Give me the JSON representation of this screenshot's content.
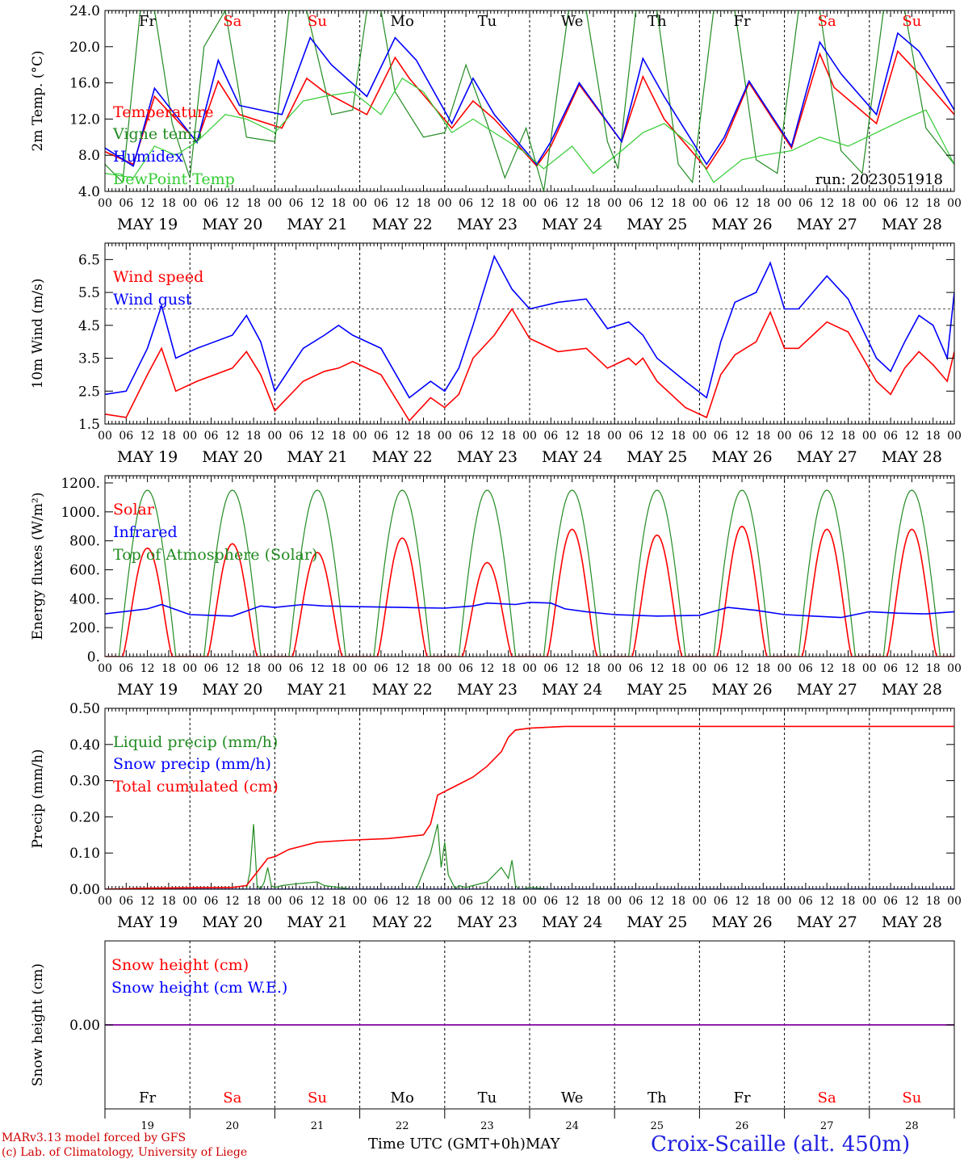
{
  "colors": {
    "red": "#ff0000",
    "green": "#228b22",
    "blue": "#0000ff",
    "lightgreen": "#33cc33",
    "purple": "#8000a0"
  },
  "days": [
    {
      "date": "MAY 19",
      "weekday": "Fr",
      "weekend": false,
      "num": "19"
    },
    {
      "date": "MAY 20",
      "weekday": "Sa",
      "weekend": true,
      "num": "20"
    },
    {
      "date": "MAY 21",
      "weekday": "Su",
      "weekend": true,
      "num": "21"
    },
    {
      "date": "MAY 22",
      "weekday": "Mo",
      "weekend": false,
      "num": "22"
    },
    {
      "date": "MAY 23",
      "weekday": "Tu",
      "weekend": false,
      "num": "23"
    },
    {
      "date": "MAY 24",
      "weekday": "We",
      "weekend": false,
      "num": "24"
    },
    {
      "date": "MAY 25",
      "weekday": "Th",
      "weekend": false,
      "num": "25"
    },
    {
      "date": "MAY 26",
      "weekday": "Fr",
      "weekend": false,
      "num": "26"
    },
    {
      "date": "MAY 27",
      "weekday": "Sa",
      "weekend": true,
      "num": "27"
    },
    {
      "date": "MAY 28",
      "weekday": "Su",
      "weekend": true,
      "num": "28"
    }
  ],
  "hour_ticks": [
    "00",
    "06",
    "12",
    "18"
  ],
  "final_hour_tick": "00",
  "footer": {
    "credit_line1": "MARv3.13 model forced by GFS",
    "credit_line2": "(c) Lab. of Climatology, University of Liege",
    "time_label": "Time UTC (GMT+0h)",
    "month": "MAY",
    "station": "Croix-Scaille (alt. 450m)"
  },
  "chart_data": [
    {
      "id": "temp",
      "type": "line",
      "ylabel": "2m Temp. (°C)",
      "ylim": [
        4,
        24
      ],
      "yticks": [
        "4.0",
        "8.0",
        "12.0",
        "16.0",
        "20.0",
        "24.0"
      ],
      "annotation": "run: 2023051918",
      "x_unit": "hours since May 19 00 UTC",
      "series": [
        {
          "name": "Temperature",
          "color": "red",
          "x": [
            0,
            8,
            14,
            26,
            32,
            38,
            50,
            57,
            62,
            74,
            82,
            86,
            98,
            104,
            110,
            122,
            126,
            134,
            146,
            152,
            158,
            170,
            175,
            182,
            194,
            202,
            206,
            218,
            224,
            230,
            240
          ],
          "y": [
            8.4,
            7.0,
            14.5,
            9.5,
            16.2,
            12.5,
            11.0,
            16.5,
            15.0,
            12.5,
            18.8,
            16.5,
            11.0,
            14.0,
            12.0,
            6.8,
            9.0,
            15.8,
            9.5,
            16.7,
            12.0,
            6.5,
            9.5,
            16.0,
            8.8,
            19.2,
            15.5,
            11.5,
            19.5,
            17.0,
            12.5
          ]
        },
        {
          "name": "Vigne temp",
          "color": "green",
          "x": [
            0,
            5,
            10,
            14,
            19,
            24,
            28,
            34,
            40,
            48,
            52,
            57,
            64,
            70,
            74,
            78,
            82,
            90,
            96,
            102,
            108,
            113,
            119,
            124,
            131,
            136,
            142,
            145,
            150,
            156,
            162,
            166,
            172,
            178,
            184,
            190,
            196,
            202,
            208,
            214,
            220,
            226,
            232,
            240
          ],
          "y": [
            7.0,
            5.0,
            24,
            24,
            11.5,
            5.5,
            20,
            24,
            10.0,
            9.5,
            24,
            24,
            12.5,
            13.0,
            24,
            24,
            15.0,
            10.0,
            10.5,
            18.0,
            11.5,
            5.5,
            11.0,
            4.0,
            24,
            24,
            9.5,
            6.5,
            24,
            24,
            7.0,
            5.0,
            24,
            24,
            7.5,
            6.0,
            24,
            24,
            8.5,
            6.0,
            24,
            24,
            11.0,
            7.0
          ]
        },
        {
          "name": "Humidex",
          "color": "blue",
          "x": [
            0,
            8,
            14,
            26,
            32,
            38,
            50,
            58,
            64,
            74,
            82,
            88,
            98,
            104,
            110,
            122,
            126,
            134,
            146,
            152,
            158,
            170,
            175,
            182,
            194,
            202,
            208,
            218,
            224,
            230,
            240
          ],
          "y": [
            8.8,
            6.8,
            15.4,
            9.4,
            18.5,
            13.5,
            12.5,
            21.0,
            18.0,
            14.5,
            21.0,
            18.5,
            11.5,
            16.5,
            12.5,
            7.0,
            9.5,
            16.0,
            9.5,
            18.7,
            14.5,
            7.0,
            10.0,
            16.2,
            9.0,
            20.5,
            17.0,
            12.5,
            21.5,
            19.5,
            13.0
          ]
        },
        {
          "name": "DewPoint Temp",
          "color": "lightgreen",
          "x": [
            0,
            8,
            14,
            20,
            26,
            34,
            40,
            48,
            56,
            62,
            70,
            78,
            84,
            90,
            98,
            104,
            110,
            118,
            124,
            132,
            138,
            146,
            152,
            158,
            166,
            172,
            180,
            186,
            194,
            202,
            210,
            218,
            226,
            232,
            240
          ],
          "y": [
            6.0,
            5.5,
            9.0,
            8.0,
            9.5,
            12.5,
            12.0,
            10.5,
            14.0,
            14.5,
            15.0,
            12.5,
            16.5,
            15.0,
            10.5,
            12.0,
            10.5,
            8.5,
            6.5,
            9.0,
            6.0,
            8.5,
            10.5,
            11.5,
            9.0,
            5.0,
            7.5,
            8.0,
            8.5,
            10.0,
            9.0,
            10.5,
            12.0,
            13.0,
            7.0
          ]
        }
      ]
    },
    {
      "id": "wind",
      "type": "line",
      "ylabel": "10m Wind (m/s)",
      "ylim": [
        1.5,
        7.0
      ],
      "yticks": [
        "1.5",
        "2.5",
        "3.5",
        "4.5",
        "5.5",
        "6.5"
      ],
      "hline": 5.0,
      "x_unit": "hours since May 19 00 UTC",
      "series": [
        {
          "name": "Wind speed",
          "color": "red",
          "x": [
            0,
            6,
            12,
            16,
            20,
            26,
            36,
            40,
            44,
            48,
            56,
            62,
            66,
            70,
            78,
            86,
            92,
            96,
            100,
            104,
            110,
            115,
            120,
            128,
            136,
            142,
            148,
            150,
            152,
            156,
            164,
            170,
            174,
            178,
            184,
            188,
            192,
            196,
            204,
            210,
            218,
            222,
            226,
            230,
            234,
            238,
            240
          ],
          "y": [
            1.8,
            1.7,
            3.0,
            3.8,
            2.5,
            2.8,
            3.2,
            3.7,
            3.0,
            1.9,
            2.8,
            3.1,
            3.2,
            3.4,
            3.0,
            1.6,
            2.3,
            2.0,
            2.4,
            3.5,
            4.2,
            5.0,
            4.1,
            3.7,
            3.8,
            3.2,
            3.5,
            3.3,
            3.5,
            2.8,
            2.0,
            1.7,
            3.0,
            3.6,
            4.0,
            4.9,
            3.8,
            3.8,
            4.6,
            4.3,
            2.8,
            2.4,
            3.2,
            3.7,
            3.3,
            2.8,
            3.7
          ]
        },
        {
          "name": "Wind gust",
          "color": "blue",
          "x": [
            0,
            6,
            12,
            16,
            20,
            26,
            36,
            40,
            44,
            48,
            56,
            62,
            66,
            70,
            78,
            86,
            92,
            96,
            100,
            104,
            110,
            115,
            120,
            128,
            136,
            142,
            148,
            150,
            152,
            156,
            164,
            170,
            174,
            178,
            184,
            188,
            192,
            196,
            204,
            210,
            218,
            222,
            226,
            230,
            234,
            238,
            240
          ],
          "y": [
            2.4,
            2.5,
            3.8,
            5.1,
            3.5,
            3.8,
            4.2,
            4.8,
            4.0,
            2.5,
            3.8,
            4.2,
            4.5,
            4.2,
            3.8,
            2.3,
            2.8,
            2.5,
            3.2,
            4.5,
            6.6,
            5.6,
            5.0,
            5.2,
            5.3,
            4.4,
            4.6,
            4.4,
            4.2,
            3.5,
            2.8,
            2.3,
            4.0,
            5.2,
            5.5,
            6.4,
            5.0,
            5.0,
            6.0,
            5.3,
            3.5,
            3.1,
            4.0,
            4.8,
            4.5,
            3.5,
            5.5
          ]
        }
      ]
    },
    {
      "id": "energy",
      "type": "line",
      "ylabel": "Energy fluxes (W/m²)",
      "ylim": [
        0,
        1250
      ],
      "yticks": [
        "0.",
        "200.",
        "400.",
        "600.",
        "800.",
        "1000.",
        "1200."
      ],
      "x_unit": "hours since May 19 00 UTC",
      "solar_peaks": [
        750,
        780,
        720,
        820,
        650,
        880,
        840,
        900,
        880,
        880
      ],
      "toa_peak": 1150,
      "series": [
        {
          "name": "Solar",
          "color": "red"
        },
        {
          "name": "Infrared",
          "color": "blue",
          "x": [
            0,
            12,
            16,
            24,
            36,
            44,
            48,
            56,
            62,
            72,
            84,
            96,
            104,
            108,
            116,
            120,
            126,
            130,
            136,
            144,
            156,
            168,
            176,
            184,
            192,
            200,
            208,
            216,
            224,
            232,
            240
          ],
          "y": [
            295,
            330,
            360,
            290,
            280,
            350,
            340,
            360,
            350,
            345,
            340,
            335,
            350,
            370,
            360,
            375,
            370,
            330,
            310,
            290,
            280,
            285,
            340,
            320,
            290,
            280,
            270,
            310,
            300,
            295,
            310
          ]
        },
        {
          "name": "Top of Atmosphere (Solar)",
          "color": "green"
        }
      ]
    },
    {
      "id": "precip",
      "type": "line",
      "ylabel": "Precip (mm/h)",
      "ylim": [
        0,
        0.5
      ],
      "yticks": [
        "0.00",
        "0.10",
        "0.20",
        "0.30",
        "0.40",
        "0.50"
      ],
      "x_unit": "hours since May 19 00 UTC",
      "series": [
        {
          "name": "Liquid precip (mm/h)",
          "color": "green",
          "x": [
            0,
            40,
            41,
            42,
            43,
            44,
            45,
            46,
            47,
            48,
            50,
            54,
            60,
            62,
            66,
            70,
            88,
            90,
            92,
            94,
            95,
            96,
            97,
            98,
            99,
            100,
            102,
            104,
            108,
            112,
            114,
            115,
            116,
            117,
            118,
            120,
            126,
            240
          ],
          "y": [
            0,
            0,
            0.05,
            0.18,
            0.01,
            0.0,
            0.02,
            0.06,
            0.01,
            0.005,
            0.01,
            0.015,
            0.02,
            0.01,
            0.005,
            0.0,
            0.0,
            0.05,
            0.1,
            0.18,
            0.06,
            0.13,
            0.04,
            0.02,
            0.0,
            0.01,
            0.005,
            0.01,
            0.02,
            0.06,
            0.03,
            0.08,
            0.01,
            0.0,
            0.0,
            0.005,
            0.0,
            0
          ]
        },
        {
          "name": "Snow precip (mm/h)",
          "color": "blue",
          "x": [
            0,
            240
          ],
          "y": [
            0,
            0
          ]
        },
        {
          "name": "Total cumulated (cm)",
          "color": "red",
          "x": [
            0,
            12,
            36,
            40,
            44,
            46,
            48,
            52,
            60,
            68,
            80,
            88,
            90,
            92,
            94,
            96,
            100,
            104,
            108,
            112,
            114,
            116,
            120,
            130,
            240
          ],
          "y": [
            0,
            0.003,
            0.005,
            0.01,
            0.06,
            0.085,
            0.09,
            0.11,
            0.13,
            0.135,
            0.14,
            0.148,
            0.15,
            0.18,
            0.26,
            0.27,
            0.29,
            0.31,
            0.34,
            0.38,
            0.42,
            0.44,
            0.445,
            0.45,
            0.45
          ]
        }
      ]
    },
    {
      "id": "snow",
      "type": "line",
      "ylabel": "Snow height (cm)",
      "ylim": [
        -1,
        1
      ],
      "yticks": [
        "0.00"
      ],
      "x_unit": "hours since May 19 00 UTC",
      "series": [
        {
          "name": "Snow height (cm)",
          "color": "red",
          "x": [
            0,
            240
          ],
          "y": [
            0,
            0
          ]
        },
        {
          "name": "Snow height (cm W.E.)",
          "color": "blue",
          "x": [
            0,
            240
          ],
          "y": [
            0,
            0
          ]
        }
      ]
    }
  ]
}
